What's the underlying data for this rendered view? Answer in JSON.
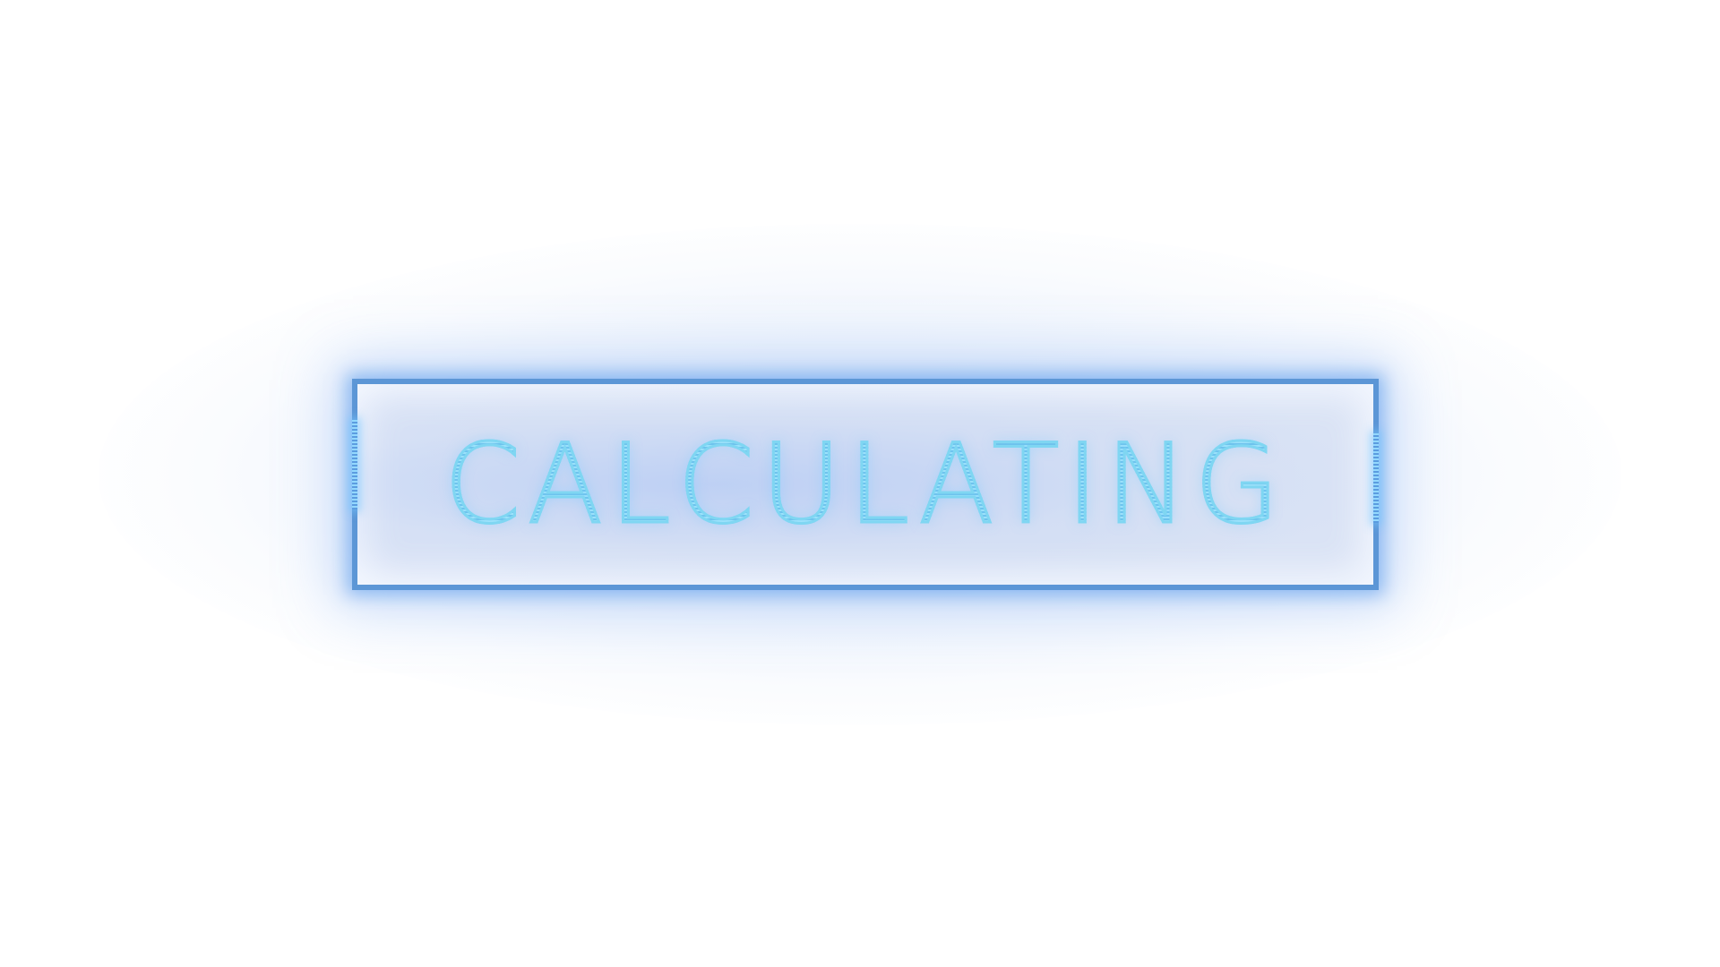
{
  "status": {
    "label": "CALCULATING"
  },
  "colors": {
    "frame_border": "#5c96d6",
    "glow": "#6fb4ee",
    "text": "#7fd6f2",
    "background": "#ffffff"
  }
}
